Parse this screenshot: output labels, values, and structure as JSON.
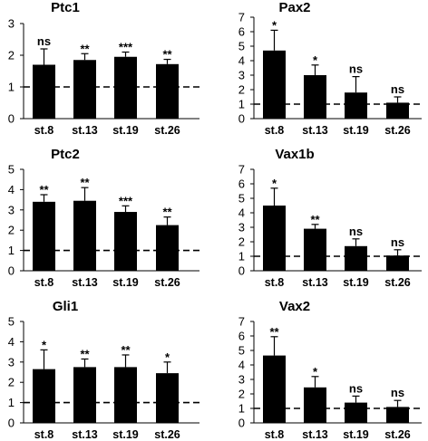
{
  "chart_data": [
    {
      "type": "bar",
      "title": "Ptc1",
      "categories": [
        "st.8",
        "st.13",
        "st.19",
        "st.26"
      ],
      "values": [
        1.7,
        1.85,
        1.95,
        1.72
      ],
      "errors": [
        0.5,
        0.2,
        0.15,
        0.15
      ],
      "significance": [
        "ns",
        "**",
        "***",
        "**"
      ],
      "ylim": [
        0,
        3
      ],
      "yticks": [
        "0",
        "1",
        "2",
        "3"
      ],
      "reference_line": 1
    },
    {
      "type": "bar",
      "title": "Pax2",
      "categories": [
        "st.8",
        "st.13",
        "st.19",
        "st.26"
      ],
      "values": [
        4.7,
        3.0,
        1.8,
        1.1
      ],
      "errors": [
        1.4,
        0.7,
        1.1,
        0.4
      ],
      "significance": [
        "*",
        "*",
        "ns",
        "ns"
      ],
      "ylim": [
        0,
        7
      ],
      "yticks": [
        "0",
        "1",
        "2",
        "3",
        "4",
        "5",
        "6",
        "7"
      ],
      "reference_line": 1
    },
    {
      "type": "bar",
      "title": "Ptc2",
      "categories": [
        "st.8",
        "st.13",
        "st.19",
        "st.26"
      ],
      "values": [
        3.4,
        3.45,
        2.9,
        2.25
      ],
      "errors": [
        0.35,
        0.65,
        0.3,
        0.4
      ],
      "significance": [
        "**",
        "**",
        "***",
        "**"
      ],
      "ylim": [
        0,
        5
      ],
      "yticks": [
        "0",
        "1",
        "2",
        "3",
        "4",
        "5"
      ],
      "reference_line": 1
    },
    {
      "type": "bar",
      "title": "Vax1b",
      "categories": [
        "st.8",
        "st.13",
        "st.19",
        "st.26"
      ],
      "values": [
        4.5,
        2.9,
        1.7,
        1.05
      ],
      "errors": [
        1.2,
        0.3,
        0.5,
        0.4
      ],
      "significance": [
        "*",
        "**",
        "ns",
        "ns"
      ],
      "ylim": [
        0,
        7
      ],
      "yticks": [
        "0",
        "1",
        "2",
        "3",
        "4",
        "5",
        "6",
        "7"
      ],
      "reference_line": 1
    },
    {
      "type": "bar",
      "title": "Gli1",
      "categories": [
        "st.8",
        "st.13",
        "st.19",
        "st.26"
      ],
      "values": [
        2.65,
        2.75,
        2.75,
        2.45
      ],
      "errors": [
        0.95,
        0.4,
        0.6,
        0.55
      ],
      "significance": [
        "*",
        "**",
        "**",
        "*"
      ],
      "ylim": [
        0,
        5
      ],
      "yticks": [
        "0",
        "1",
        "2",
        "3",
        "4",
        "5"
      ],
      "reference_line": 1
    },
    {
      "type": "bar",
      "title": "Vax2",
      "categories": [
        "st.8",
        "st.13",
        "st.19",
        "st.26"
      ],
      "values": [
        4.65,
        2.45,
        1.4,
        1.1
      ],
      "errors": [
        1.3,
        0.75,
        0.45,
        0.45
      ],
      "significance": [
        "**",
        "*",
        "ns",
        "ns"
      ],
      "ylim": [
        0,
        7
      ],
      "yticks": [
        "0",
        "1",
        "2",
        "3",
        "4",
        "5",
        "6",
        "7"
      ],
      "reference_line": 1
    }
  ]
}
